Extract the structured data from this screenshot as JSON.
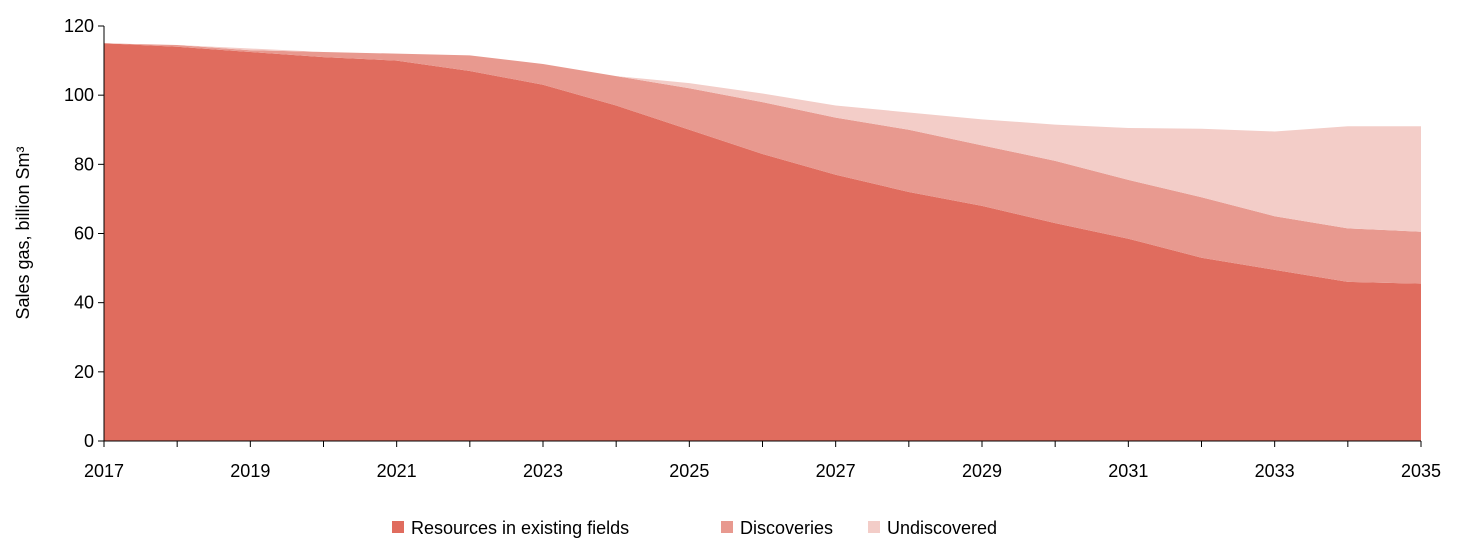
{
  "chart_data": {
    "type": "area",
    "stacked": true,
    "title": "",
    "xlabel": "",
    "ylabel": "Sales gas, billion Sm³",
    "ylim": [
      0,
      120
    ],
    "yticks": [
      0,
      20,
      40,
      60,
      80,
      100,
      120
    ],
    "x": [
      2017,
      2018,
      2019,
      2020,
      2021,
      2022,
      2023,
      2024,
      2025,
      2026,
      2027,
      2028,
      2029,
      2030,
      2031,
      2032,
      2033,
      2034,
      2035
    ],
    "xtick_labels": [
      "2017",
      "2019",
      "2021",
      "2023",
      "2025",
      "2027",
      "2029",
      "2031",
      "2033",
      "2035"
    ],
    "legend_position": "bottom",
    "grid": false,
    "series": [
      {
        "name": "Resources in existing fields",
        "color": "#E06C5E",
        "values": [
          115,
          114,
          112.5,
          111,
          110,
          107,
          103,
          97,
          90,
          83,
          77,
          72,
          68,
          63,
          58.5,
          53,
          49.5,
          46,
          45.5
        ]
      },
      {
        "name": "Discoveries",
        "color": "#E8998F",
        "values": [
          0,
          0.5,
          0.5,
          1.5,
          2,
          4.5,
          6,
          8.5,
          12,
          15,
          16.5,
          18,
          17.5,
          18,
          17,
          17.5,
          15.5,
          15.5,
          15
        ]
      },
      {
        "name": "Undiscovered",
        "color": "#F3CDC8",
        "values": [
          0,
          0,
          0.5,
          0,
          0,
          0,
          0,
          0,
          1.5,
          2.5,
          3.5,
          5,
          7.5,
          10.5,
          15,
          19.8,
          24.5,
          29.5,
          30.5
        ]
      }
    ]
  }
}
